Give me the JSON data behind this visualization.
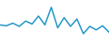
{
  "values": [
    13.5,
    13.2,
    14.1,
    13.0,
    14.8,
    13.8,
    16.5,
    13.5,
    19.5,
    12.5,
    16.0,
    13.0,
    15.5,
    10.5,
    13.0,
    11.8,
    13.2,
    11.0
  ],
  "line_color": "#2196c8",
  "line_width": 1.1,
  "background_color": "#ffffff",
  "ylim_min": 8.0,
  "ylim_max": 22.0
}
